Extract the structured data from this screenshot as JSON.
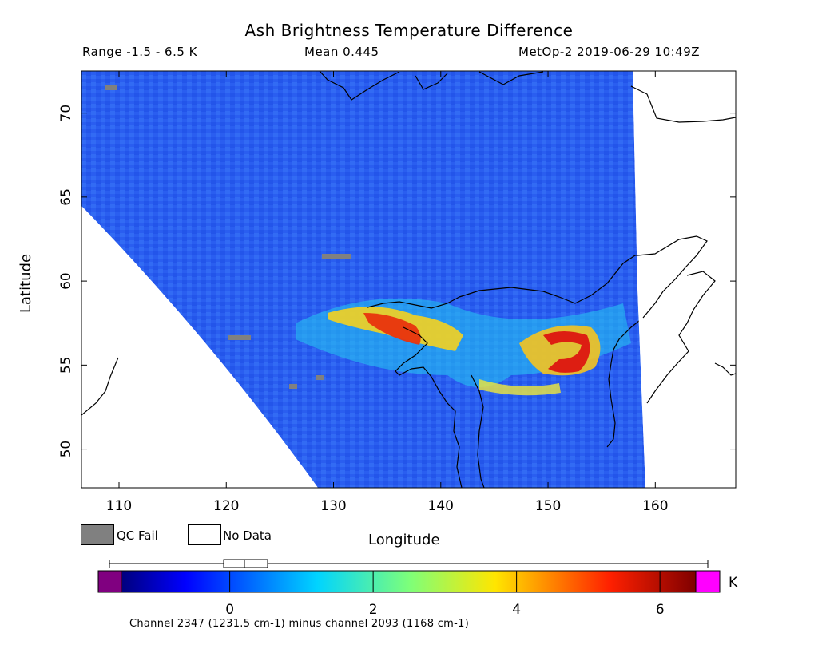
{
  "header": {
    "title": "Ash Brightness Temperature Difference",
    "range_text": "Range -1.5 - 6.5 K",
    "mean_text": "Mean 0.445",
    "satellite_time": "MetOp-2 2019-06-29 10:49Z"
  },
  "map": {
    "y_axis_label": "Latitude",
    "x_axis_label": "Longitude",
    "lon_range": [
      106.5,
      167.5
    ],
    "lat_range": [
      47.7,
      72.5
    ],
    "lon_ticks": [
      "110",
      "120",
      "130",
      "140",
      "150",
      "160"
    ],
    "lat_ticks": [
      "50",
      "55",
      "60",
      "65",
      "70"
    ],
    "background_color": "#2a5ef0",
    "no_data_color": "#ffffff",
    "qc_fail_color": "#808080"
  },
  "legend": {
    "qc_fail_label": "QC Fail",
    "no_data_label": "No Data"
  },
  "colorbar": {
    "unit": "K",
    "tick_labels": [
      "0",
      "2",
      "4",
      "6"
    ],
    "tick_values": [
      0,
      2,
      4,
      6
    ],
    "range": [
      -1.5,
      6.5
    ],
    "under_color": "#800080",
    "over_color": "#ff00ff",
    "footnote": "Channel 2347 (1231.5 cm-1) minus channel 2093 (1168 cm-1)"
  }
}
